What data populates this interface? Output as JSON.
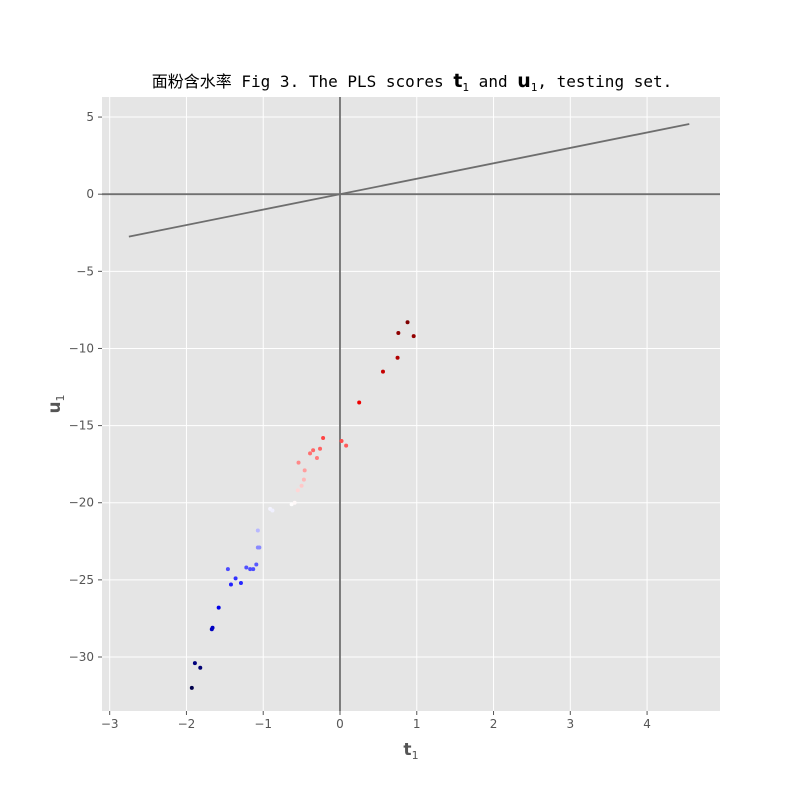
{
  "chart_data": {
    "type": "scatter",
    "title_prefix": "面粉含水率 Fig 3. The PLS scores ",
    "title_t": "t",
    "title_sub1": "1",
    "title_and": " and ",
    "title_u": "u",
    "title_sub2": "1",
    "title_suffix": ", testing set.",
    "xlabel_main": "t",
    "xlabel_sub": "1",
    "ylabel_main": "u",
    "ylabel_sub": "1",
    "xlim": [
      -3.1,
      4.95
    ],
    "ylim": [
      -33.5,
      6.3
    ],
    "xticks": [
      -3,
      -2,
      -1,
      0,
      1,
      2,
      3,
      4
    ],
    "yticks": [
      5,
      0,
      -5,
      -10,
      -15,
      -20,
      -25,
      -30
    ],
    "xtick_labels": [
      "−3",
      "−2",
      "−1",
      "0",
      "1",
      "2",
      "3",
      "4"
    ],
    "ytick_labels": [
      "5",
      "0",
      "−5",
      "−10",
      "−15",
      "−20",
      "−25",
      "−30"
    ],
    "fit_line": {
      "x": [
        -2.75,
        4.55
      ],
      "y": [
        -2.75,
        4.55
      ]
    },
    "ref_lines": {
      "h": 0,
      "v": 0
    },
    "colormap": "seismic",
    "points": [
      {
        "x": -1.93,
        "y": -32.0
      },
      {
        "x": -1.89,
        "y": -30.4
      },
      {
        "x": -1.82,
        "y": -30.7
      },
      {
        "x": -1.67,
        "y": -28.2
      },
      {
        "x": -1.66,
        "y": -28.1
      },
      {
        "x": -1.58,
        "y": -26.8
      },
      {
        "x": -1.46,
        "y": -24.3
      },
      {
        "x": -1.42,
        "y": -25.3
      },
      {
        "x": -1.36,
        "y": -24.9
      },
      {
        "x": -1.29,
        "y": -25.2
      },
      {
        "x": -1.22,
        "y": -24.2
      },
      {
        "x": -1.17,
        "y": -24.3
      },
      {
        "x": -1.13,
        "y": -24.3
      },
      {
        "x": -1.09,
        "y": -24.0
      },
      {
        "x": -1.07,
        "y": -22.9
      },
      {
        "x": -1.05,
        "y": -22.9
      },
      {
        "x": -1.07,
        "y": -21.8
      },
      {
        "x": -0.91,
        "y": -20.4
      },
      {
        "x": -0.88,
        "y": -20.5
      },
      {
        "x": -0.63,
        "y": -20.1
      },
      {
        "x": -0.59,
        "y": -20.0
      },
      {
        "x": -0.55,
        "y": -19.2
      },
      {
        "x": -0.5,
        "y": -18.9
      },
      {
        "x": -0.47,
        "y": -18.5
      },
      {
        "x": -0.46,
        "y": -17.9
      },
      {
        "x": -0.54,
        "y": -17.4
      },
      {
        "x": -0.39,
        "y": -16.8
      },
      {
        "x": -0.35,
        "y": -16.6
      },
      {
        "x": -0.3,
        "y": -17.1
      },
      {
        "x": -0.26,
        "y": -16.5
      },
      {
        "x": -0.22,
        "y": -15.8
      },
      {
        "x": 0.02,
        "y": -16.0
      },
      {
        "x": 0.08,
        "y": -16.3
      },
      {
        "x": 0.25,
        "y": -13.5
      },
      {
        "x": 0.56,
        "y": -11.5
      },
      {
        "x": 0.75,
        "y": -10.6
      },
      {
        "x": 0.76,
        "y": -9.0
      },
      {
        "x": 0.88,
        "y": -8.3
      },
      {
        "x": 0.96,
        "y": -9.2
      }
    ]
  }
}
